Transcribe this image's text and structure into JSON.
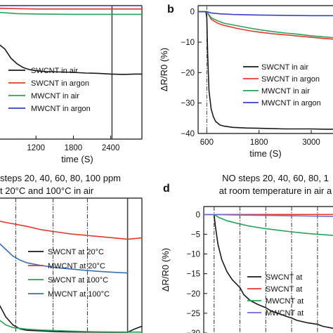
{
  "figure": {
    "panels": [
      {
        "id": "a",
        "tag": "",
        "title_lines": [],
        "xlabel": "time (S)",
        "ylabel": "",
        "xlim": [
          600,
          2900
        ],
        "ylim": [
          -40,
          0
        ],
        "xticks": [
          1200,
          1800,
          2400
        ],
        "xtick_labels": [
          "1200",
          "1800",
          "2400"
        ],
        "yticks": [],
        "ytick_labels": [],
        "grid": false,
        "legend_position": "center-left",
        "vlines": [
          {
            "x": 2420,
            "style": "solid",
            "color": "#444444"
          }
        ],
        "series": [
          {
            "name": "SWCNT in air",
            "color": "#1a1a1a",
            "x": [
              600,
              700,
              800,
              900,
              1000,
              1100,
              1200,
              1300,
              1400,
              1600,
              1800,
              2000,
              2200,
              2400,
              2600,
              2800,
              2900
            ],
            "y": [
              -11.5,
              -13.0,
              -15.8,
              -17.5,
              -18.6,
              -19.2,
              -19.5,
              -19.7,
              -19.8,
              -19.9,
              -20.0,
              -20.2,
              -20.3,
              -20.5,
              -20.6,
              -20.5,
              -20.5
            ]
          },
          {
            "name": "SWCNT in argon",
            "color": "#e03a2e",
            "x": [
              600,
              900,
              1200,
              1800,
              2400,
              2900
            ],
            "y": [
              -0.8,
              -0.9,
              -1.0,
              -1.0,
              -1.0,
              -1.0
            ]
          },
          {
            "name": "MWCNT in air",
            "color": "#2aa05a",
            "x": [
              600,
              900,
              1200,
              1800,
              2400,
              2900
            ],
            "y": [
              -2.0,
              -2.4,
              -2.5,
              -2.6,
              -2.6,
              -2.6
            ]
          },
          {
            "name": "MWCNT in argon",
            "color": "#3a42c2",
            "x": [
              600,
              900,
              1200,
              1800,
              2400,
              2900
            ],
            "y": [
              0.0,
              0.0,
              0.0,
              0.0,
              0.0,
              0.0
            ]
          }
        ]
      },
      {
        "id": "b",
        "tag": "b",
        "title_lines": [],
        "xlabel": "time (S)",
        "ylabel": "ΔR/R0 (%)",
        "xlim": [
          400,
          3500
        ],
        "ylim": [
          -40,
          2
        ],
        "xticks": [
          600,
          1800,
          3000
        ],
        "xtick_labels": [
          "600",
          "1800",
          "3000"
        ],
        "yticks": [
          0,
          -10,
          -20,
          -30,
          -40
        ],
        "ytick_labels": [
          "0",
          "−10",
          "−20",
          "−30",
          "−40"
        ],
        "grid": false,
        "legend_position": "bottom-right",
        "vlines": [
          {
            "x": 600,
            "style": "dashdot",
            "color": "#555555"
          }
        ],
        "series": [
          {
            "name": "SWCNT in air",
            "color": "#1a1a1a",
            "x": [
              400,
              580,
              600,
              620,
              650,
              700,
              750,
              800,
              900,
              1000,
              1200,
              1500,
              1800,
              2100,
              2400,
              2700,
              3000,
              3300,
              3500
            ],
            "y": [
              0.0,
              0.0,
              -2.0,
              -14.0,
              -26.0,
              -32.0,
              -34.5,
              -36.0,
              -37.2,
              -37.6,
              -38.0,
              -38.2,
              -38.3,
              -38.4,
              -38.5,
              -38.5,
              -38.5,
              -38.6,
              -38.6
            ]
          },
          {
            "name": "SWCNT in argon",
            "color": "#e03a2e",
            "x": [
              400,
              600,
              700,
              850,
              1000,
              1300,
              1600,
              1800,
              2100,
              2400,
              2700,
              3000,
              3300,
              3500
            ],
            "y": [
              0.0,
              0.0,
              -2.5,
              -3.8,
              -4.5,
              -5.5,
              -6.3,
              -6.7,
              -7.2,
              -7.6,
              -8.0,
              -8.4,
              -8.8,
              -9.0
            ]
          },
          {
            "name": "MWCNT in air",
            "color": "#2aa05a",
            "x": [
              400,
              600,
              700,
              850,
              1000,
              1300,
              1600,
              1800,
              2100,
              2400,
              2700,
              3000,
              3300,
              3500
            ],
            "y": [
              0.0,
              0.0,
              -2.0,
              -3.0,
              -3.8,
              -4.6,
              -5.4,
              -5.9,
              -6.5,
              -7.0,
              -7.4,
              -7.9,
              -8.3,
              -8.5
            ]
          },
          {
            "name": "MWCNT in argon",
            "color": "#3a42c2",
            "x": [
              400,
              600,
              700,
              900,
              1200,
              1800,
              2400,
              3000,
              3500
            ],
            "y": [
              0.0,
              0.0,
              -0.4,
              -0.7,
              -0.9,
              -1.1,
              -1.2,
              -1.3,
              -1.3
            ]
          }
        ]
      },
      {
        "id": "c",
        "tag": "",
        "title_lines": [
          "steps 20, 40, 60, 80, 100 ppm",
          "t 20°C and 100°C in air"
        ],
        "xlabel": "",
        "ylabel": "",
        "xlim": [
          0,
          100
        ],
        "ylim": [
          -100,
          0
        ],
        "xticks": [],
        "xtick_labels": [],
        "yticks": [],
        "ytick_labels": [],
        "grid": false,
        "legend_position": "bottom-right",
        "vlines": [
          {
            "x": 12,
            "style": "dashdot",
            "color": "#444444"
          },
          {
            "x": 38,
            "style": "dashdot",
            "color": "#444444"
          },
          {
            "x": 62,
            "style": "dashdot",
            "color": "#444444"
          },
          {
            "x": 90,
            "style": "solid",
            "color": "#444444"
          }
        ],
        "series": [
          {
            "name": "SWCNT at 20°C",
            "color": "#1a1a1a",
            "x": [
              0,
              5,
              10,
              15,
              20,
              30,
              40,
              50,
              60,
              70,
              80,
              90,
              95,
              100
            ],
            "y": [
              -78,
              -88,
              -94,
              -97,
              -98,
              -98.5,
              -99,
              -99.2,
              -99.3,
              -99.4,
              -99.5,
              -99.5,
              -97,
              -95
            ]
          },
          {
            "name": "MWCNT at 20°C",
            "color": "#e03a2e",
            "x": [
              0,
              5,
              10,
              20,
              30,
              40,
              50,
              60,
              70,
              80,
              90,
              100,
              120
            ],
            "y": [
              -17,
              -18,
              -19,
              -21,
              -23.5,
              -25,
              -26.5,
              -27.5,
              -28.5,
              -29.5,
              -30.5,
              -29.5,
              -29
            ]
          },
          {
            "name": "SWCNT at 100°C",
            "color": "#2aa05a",
            "x": [
              0,
              5,
              10,
              20,
              30,
              40,
              50,
              60,
              70,
              80,
              90,
              100
            ],
            "y": [
              -90,
              -94,
              -96,
              -97.2,
              -97.8,
              -98.2,
              -98.6,
              -98.9,
              -99.1,
              -99.2,
              -99.3,
              -99.3
            ]
          },
          {
            "name": "MWCNT at 100°C",
            "color": "#3a6fb0",
            "x": [
              0,
              5,
              10,
              15,
              20,
              30,
              40,
              50,
              60,
              70,
              80,
              90
            ],
            "y": [
              -33,
              -38,
              -43,
              -46,
              -48,
              -50,
              -51.5,
              -52.5,
              -53.5,
              -54.3,
              -55,
              -55.5
            ]
          }
        ]
      },
      {
        "id": "d",
        "tag": "d",
        "title_lines": [
          "NO steps 20, 40, 60, 80, 1",
          "at room temperature in air a"
        ],
        "xlabel": "",
        "ylabel": "ΔR/R0 (%)",
        "xlim": [
          0,
          100
        ],
        "ylim": [
          -30,
          2
        ],
        "xticks": [],
        "xtick_labels": [],
        "yticks": [
          0,
          -5,
          -10,
          -15,
          -20,
          -25,
          -30
        ],
        "ytick_labels": [
          "0",
          "−5",
          "−10",
          "−15",
          "−20",
          "−25",
          "−30"
        ],
        "grid": false,
        "legend_position": "bottom-right",
        "vlines": [
          {
            "x": 8,
            "style": "dashdot",
            "color": "#444444"
          },
          {
            "x": 28,
            "style": "dashdot",
            "color": "#444444"
          },
          {
            "x": 48,
            "style": "dashdot",
            "color": "#444444"
          },
          {
            "x": 68,
            "style": "dashdot",
            "color": "#444444"
          },
          {
            "x": 88,
            "style": "dashdot",
            "color": "#444444"
          }
        ],
        "series": [
          {
            "name": "SWCNT at",
            "color": "#1a1a1a",
            "x": [
              0,
              8,
              9,
              11,
              14,
              18,
              22,
              28,
              31,
              36,
              42,
              48,
              52,
              58,
              64,
              68,
              72,
              80,
              88,
              92,
              100
            ],
            "y": [
              0,
              0,
              -3,
              -7.5,
              -11.5,
              -14.5,
              -16.5,
              -18.5,
              -20.3,
              -21.8,
              -22.8,
              -23.6,
              -24.4,
              -25.1,
              -25.8,
              -26.2,
              -26.8,
              -27.4,
              -27.8,
              -28.3,
              -28.8
            ]
          },
          {
            "name": "SWCNT at",
            "color": "#e03a2e",
            "x": [
              0,
              8,
              20,
              40,
              60,
              80,
              100
            ],
            "y": [
              0,
              0,
              0,
              0,
              0,
              0,
              0
            ]
          },
          {
            "name": "MWCNT at",
            "color": "#2aa05a",
            "x": [
              0,
              8,
              12,
              18,
              28,
              36,
              48,
              58,
              68,
              80,
              88,
              100
            ],
            "y": [
              0,
              0,
              -0.8,
              -1.6,
              -2.4,
              -3.0,
              -3.6,
              -4.0,
              -4.4,
              -4.8,
              -5.0,
              -5.3
            ]
          },
          {
            "name": "MWCNT at",
            "color": "#6a6fd0",
            "x": [
              0,
              8,
              20,
              40,
              60,
              80,
              100
            ],
            "y": [
              0,
              0,
              -0.1,
              -0.2,
              -0.3,
              -0.4,
              -0.5
            ]
          }
        ]
      }
    ]
  },
  "chart_data": [
    {
      "type": "line",
      "title": "",
      "xlabel": "time (S)",
      "ylabel": "",
      "xlim": [
        600,
        2900
      ],
      "ylim": [
        -40,
        0
      ],
      "series": [
        {
          "name": "SWCNT in air",
          "x": [
            600,
            800,
            1000,
            1200,
            1800,
            2400,
            2900
          ],
          "values": [
            -11.5,
            -15.8,
            -18.6,
            -19.5,
            -20.0,
            -20.5,
            -20.5
          ]
        },
        {
          "name": "SWCNT in argon",
          "x": [
            600,
            1200,
            1800,
            2400,
            2900
          ],
          "values": [
            -0.8,
            -1.0,
            -1.0,
            -1.0,
            -1.0
          ]
        },
        {
          "name": "MWCNT in air",
          "x": [
            600,
            1200,
            1800,
            2400,
            2900
          ],
          "values": [
            -2.0,
            -2.5,
            -2.6,
            -2.6,
            -2.6
          ]
        },
        {
          "name": "MWCNT in argon",
          "x": [
            600,
            1200,
            1800,
            2400,
            2900
          ],
          "values": [
            0.0,
            0.0,
            0.0,
            0.0,
            0.0
          ]
        }
      ]
    },
    {
      "type": "line",
      "title": "",
      "xlabel": "time (S)",
      "ylabel": "ΔR/R0 (%)",
      "xlim": [
        400,
        3500
      ],
      "ylim": [
        -40,
        2
      ],
      "series": [
        {
          "name": "SWCNT in air",
          "x": [
            600,
            700,
            900,
            1200,
            1800,
            2400,
            3000,
            3500
          ],
          "values": [
            -2.0,
            -32.0,
            -37.2,
            -38.0,
            -38.3,
            -38.5,
            -38.5,
            -38.6
          ]
        },
        {
          "name": "SWCNT in argon",
          "x": [
            600,
            1000,
            1800,
            2400,
            3000,
            3500
          ],
          "values": [
            0.0,
            -4.5,
            -6.7,
            -7.6,
            -8.4,
            -9.0
          ]
        },
        {
          "name": "MWCNT in air",
          "x": [
            600,
            1000,
            1800,
            2400,
            3000,
            3500
          ],
          "values": [
            0.0,
            -3.8,
            -5.9,
            -7.0,
            -7.9,
            -8.5
          ]
        },
        {
          "name": "MWCNT in argon",
          "x": [
            600,
            1200,
            1800,
            2400,
            3000,
            3500
          ],
          "values": [
            0.0,
            -0.9,
            -1.1,
            -1.2,
            -1.3,
            -1.3
          ]
        }
      ]
    },
    {
      "type": "line",
      "title": "steps 20, 40, 60, 80, 100 ppm t 20°C and 100°C in air",
      "xlabel": "",
      "ylabel": "",
      "series": [
        {
          "name": "SWCNT at 20°C"
        },
        {
          "name": "MWCNT at 20°C"
        },
        {
          "name": "SWCNT at 100°C"
        },
        {
          "name": "MWCNT at 100°C"
        }
      ]
    },
    {
      "type": "line",
      "title": "NO steps 20, 40, 60, 80, 1 at room temperature in air a",
      "xlabel": "",
      "ylabel": "ΔR/R0 (%)",
      "ylim": [
        -30,
        2
      ],
      "series": [
        {
          "name": "SWCNT at",
          "values": [
            0,
            -11.5,
            -18.5,
            -23.6,
            -26.2,
            -27.8
          ]
        },
        {
          "name": "SWCNT at",
          "values": [
            0,
            0,
            0,
            0,
            0,
            0
          ]
        },
        {
          "name": "MWCNT at",
          "values": [
            0,
            -1.6,
            -2.4,
            -3.6,
            -4.4,
            -5.0
          ]
        },
        {
          "name": "MWCNT at",
          "values": [
            0,
            -0.1,
            -0.2,
            -0.3,
            -0.4,
            -0.5
          ]
        }
      ]
    }
  ]
}
